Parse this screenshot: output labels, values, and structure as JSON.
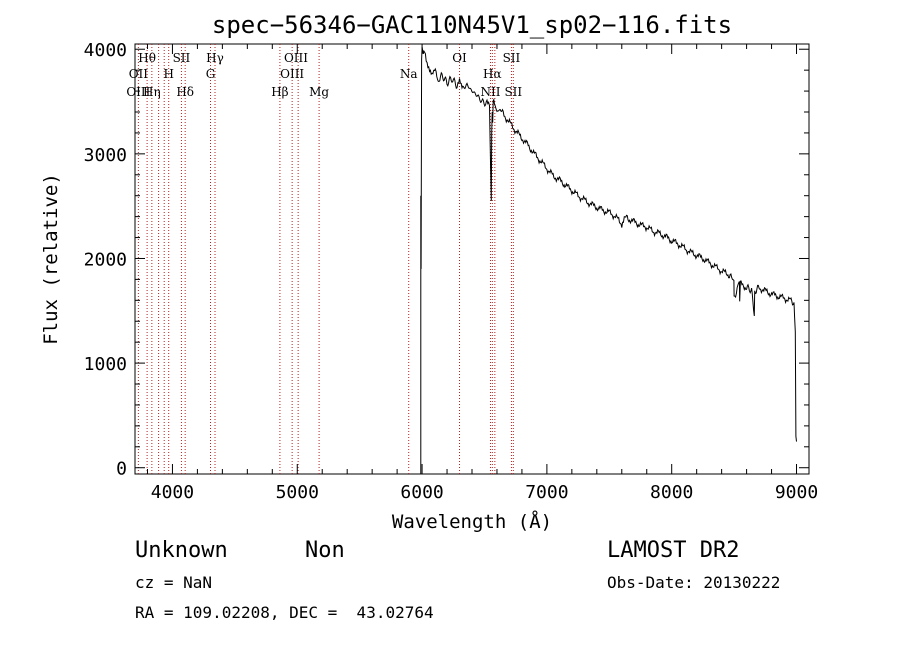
{
  "chart_data": {
    "type": "line",
    "title": "spec−56346−GAC110N45V1_sp02−116.fits",
    "xlabel": "Wavelength (Å)",
    "ylabel": "Flux (relative)",
    "xlim": [
      3700,
      9100
    ],
    "ylim": [
      -60,
      4050
    ],
    "xticks": [
      4000,
      5000,
      6000,
      7000,
      8000,
      9000
    ],
    "yticks": [
      0,
      1000,
      2000,
      3000,
      4000
    ],
    "grid": false,
    "line_color": "#000000",
    "marker_color": "#b22222",
    "series": [
      {
        "x": [
          5990,
          5992,
          5996,
          6000,
          6010,
          6020,
          6040,
          6060,
          6080,
          6100,
          6130,
          6160,
          6200,
          6240,
          6280,
          6300,
          6320,
          6360,
          6400,
          6440,
          6480,
          6520,
          6540,
          6555,
          6558,
          6562,
          6566,
          6570,
          6580,
          6600,
          6620,
          6650,
          6700,
          6750,
          6800,
          6850,
          6900,
          6950,
          7000,
          7050,
          7100,
          7150,
          7200,
          7250,
          7300,
          7350,
          7400,
          7450,
          7500,
          7550,
          7600,
          7620,
          7650,
          7700,
          7750,
          7800,
          7850,
          7900,
          7950,
          8000,
          8050,
          8100,
          8150,
          8200,
          8250,
          8300,
          8350,
          8400,
          8450,
          8498,
          8500,
          8542,
          8545,
          8550,
          8600,
          8640,
          8662,
          8665,
          8700,
          8750,
          8800,
          8850,
          8900,
          8950,
          8980,
          8990,
          8995,
          9000
        ],
        "y": [
          2600,
          1900,
          3900,
          4020,
          3950,
          4000,
          3880,
          3820,
          3770,
          3800,
          3700,
          3750,
          3680,
          3720,
          3650,
          3700,
          3620,
          3660,
          3600,
          3560,
          3500,
          3480,
          3450,
          2550,
          3200,
          3400,
          3300,
          3500,
          3480,
          3420,
          3440,
          3380,
          3300,
          3220,
          3150,
          3080,
          3000,
          2930,
          2860,
          2790,
          2750,
          2700,
          2650,
          2600,
          2560,
          2520,
          2490,
          2460,
          2440,
          2400,
          2330,
          2400,
          2380,
          2350,
          2320,
          2300,
          2260,
          2240,
          2210,
          2170,
          2140,
          2100,
          2060,
          2030,
          2000,
          1960,
          1920,
          1880,
          1850,
          1790,
          1620,
          1780,
          1590,
          1760,
          1720,
          1700,
          1450,
          1690,
          1720,
          1690,
          1660,
          1640,
          1620,
          1600,
          1580,
          1300,
          300,
          250
        ]
      }
    ],
    "lines": [
      {
        "x": 3727,
        "labels": [
          "OII",
          "OIII"
        ]
      },
      {
        "x": 3797,
        "labels": [
          "Hθ"
        ]
      },
      {
        "x": 3835,
        "labels": [
          "Hη"
        ]
      },
      {
        "x": 3889,
        "labels": []
      },
      {
        "x": 3934,
        "labels": []
      },
      {
        "x": 3970,
        "labels": [
          "H"
        ]
      },
      {
        "x": 4072,
        "labels": [
          "SII"
        ]
      },
      {
        "x": 4102,
        "labels": [
          "Hδ"
        ]
      },
      {
        "x": 4305,
        "labels": [
          "G"
        ]
      },
      {
        "x": 4341,
        "labels": [
          "Hγ"
        ]
      },
      {
        "x": 4861,
        "labels": [
          "Hβ"
        ]
      },
      {
        "x": 4959,
        "labels": [
          "OIII"
        ]
      },
      {
        "x": 5007,
        "labels": [
          "OIII"
        ]
      },
      {
        "x": 5175,
        "labels": [
          "Mg"
        ]
      },
      {
        "x": 5893,
        "labels": [
          "Na"
        ]
      },
      {
        "x": 6300,
        "labels": [
          "OI"
        ]
      },
      {
        "x": 6548,
        "labels": []
      },
      {
        "x": 6563,
        "labels": [
          "Hα",
          "NII"
        ]
      },
      {
        "x": 6583,
        "labels": []
      },
      {
        "x": 6716,
        "labels": [
          "SII"
        ]
      },
      {
        "x": 6731,
        "labels": [
          "SII"
        ]
      }
    ],
    "line_label_rows": [
      {
        "text": "Hθ",
        "row": 1,
        "x": 3797
      },
      {
        "text": "SII",
        "row": 1,
        "x": 4072
      },
      {
        "text": "Hγ",
        "row": 1,
        "x": 4341
      },
      {
        "text": "OIII",
        "row": 1,
        "x": 4990
      },
      {
        "text": "OI",
        "row": 1,
        "x": 6300
      },
      {
        "text": "SII",
        "row": 1,
        "x": 6716
      },
      {
        "text": "OII",
        "row": 2,
        "x": 3727
      },
      {
        "text": "H",
        "row": 2,
        "x": 3970
      },
      {
        "text": "G",
        "row": 2,
        "x": 4305
      },
      {
        "text": "OIII",
        "row": 2,
        "x": 4959
      },
      {
        "text": "Na",
        "row": 2,
        "x": 5893
      },
      {
        "text": "Hα",
        "row": 2,
        "x": 6563
      },
      {
        "text": "OIII",
        "row": 3,
        "x": 3727
      },
      {
        "text": "Hη",
        "row": 3,
        "x": 3835
      },
      {
        "text": "Hδ",
        "row": 3,
        "x": 4102
      },
      {
        "text": "Hβ",
        "row": 3,
        "x": 4861
      },
      {
        "text": "Mg",
        "row": 3,
        "x": 5175
      },
      {
        "text": "NII",
        "row": 3,
        "x": 6548
      },
      {
        "text": "SII",
        "row": 3,
        "x": 6731
      }
    ]
  },
  "info": {
    "class": "Unknown",
    "subclass": "Non",
    "cz": "cz = NaN",
    "coords": "RA = 109.02208, DEC =  43.02764",
    "survey": "LAMOST DR2",
    "obs_date": "Obs-Date: 20130222"
  }
}
